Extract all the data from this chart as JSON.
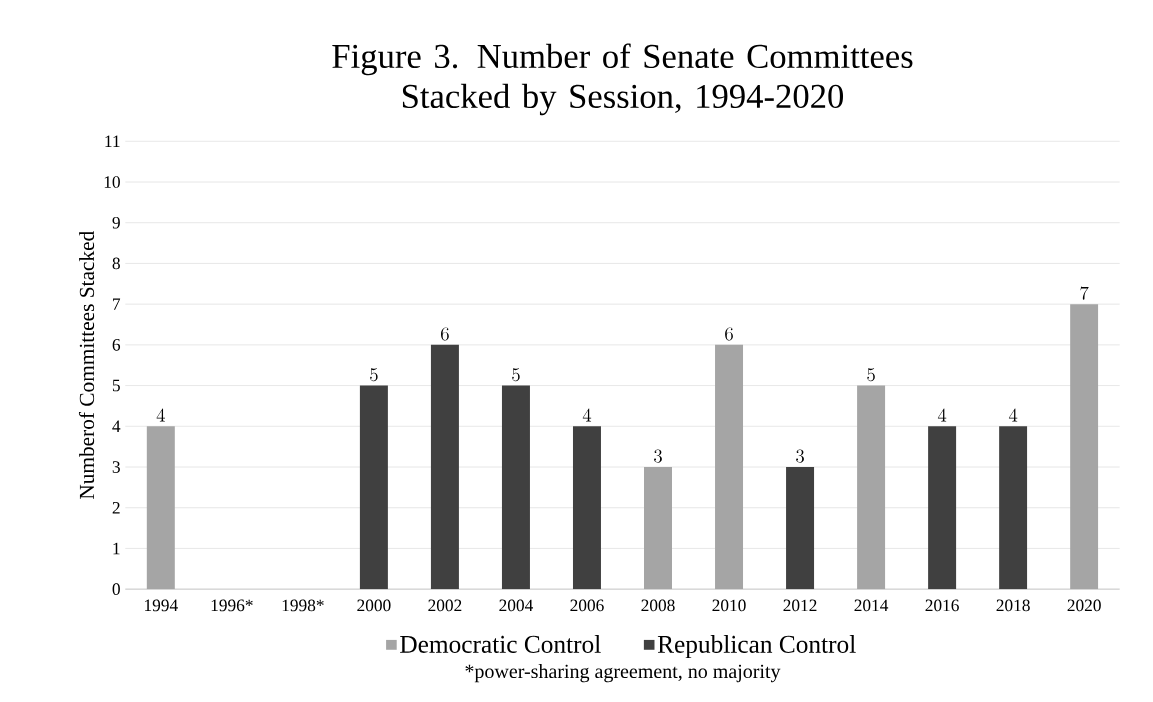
{
  "chart_data": {
    "type": "bar",
    "title": "Figure 3. Number of Senate Committees Stacked by Session, 1994-2020",
    "ylabel": "Numberof Committees Stacked",
    "categories": [
      "1994",
      "1996*",
      "1998*",
      "2000",
      "2002",
      "2004",
      "2006",
      "2008",
      "2010",
      "2012",
      "2014",
      "2016",
      "2018",
      "2020"
    ],
    "series": [
      {
        "name": "Democratic Control",
        "color": "#a5a5a5",
        "values": [
          4,
          null,
          null,
          null,
          null,
          null,
          null,
          3,
          6,
          null,
          5,
          null,
          null,
          7
        ]
      },
      {
        "name": "Republican Control",
        "color": "#404040",
        "values": [
          null,
          null,
          null,
          5,
          6,
          5,
          4,
          null,
          null,
          3,
          null,
          4,
          4,
          null
        ]
      }
    ],
    "ylim": [
      0,
      11
    ],
    "yticks": [
      0,
      1,
      2,
      3,
      4,
      5,
      6,
      7,
      8,
      9,
      10,
      11
    ],
    "grid": "y",
    "legend": "bottom",
    "data_labels": true,
    "annotations": [
      "*power-sharing agreement, no majority"
    ]
  }
}
